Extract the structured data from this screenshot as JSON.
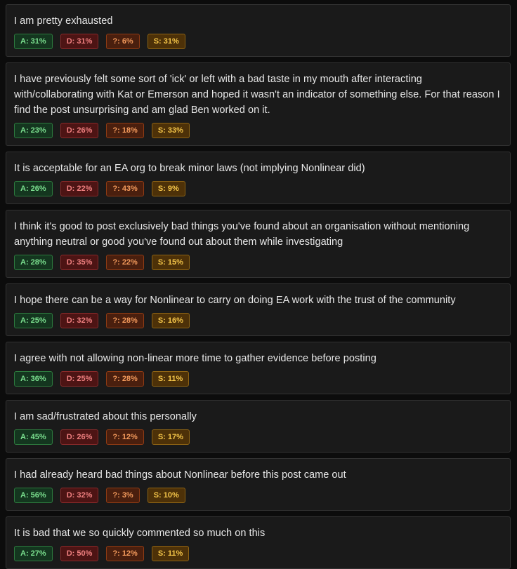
{
  "cards": [
    {
      "statement": "I am pretty exhausted",
      "a": "A: 31%",
      "d": "D: 31%",
      "q": "?: 6%",
      "s": "S: 31%"
    },
    {
      "statement": "I have previously felt some sort of 'ick' or left with a bad taste in my mouth after interacting with/collaborating with Kat or Emerson and hoped it wasn't an indicator of something else. For that reason I find the post unsurprising and am glad Ben worked on it.",
      "a": "A: 23%",
      "d": "D: 26%",
      "q": "?: 18%",
      "s": "S: 33%"
    },
    {
      "statement": "It is acceptable for an EA org to break minor laws (not implying Nonlinear did)",
      "a": "A: 26%",
      "d": "D: 22%",
      "q": "?: 43%",
      "s": "S: 9%"
    },
    {
      "statement": "I think it's good to post exclusively bad things you've found about an organisation without mentioning anything neutral or good you've found out about them while investigating",
      "a": "A: 28%",
      "d": "D: 35%",
      "q": "?: 22%",
      "s": "S: 15%"
    },
    {
      "statement": "I hope there can be a way for Nonlinear to carry on doing EA work with the trust of the community",
      "a": "A: 25%",
      "d": "D: 32%",
      "q": "?: 28%",
      "s": "S: 16%"
    },
    {
      "statement": "I agree with not allowing non-linear more time to gather evidence before posting",
      "a": "A: 36%",
      "d": "D: 25%",
      "q": "?: 28%",
      "s": "S: 11%"
    },
    {
      "statement": "I am sad/frustrated about this personally",
      "a": "A: 45%",
      "d": "D: 26%",
      "q": "?: 12%",
      "s": "S: 17%"
    },
    {
      "statement": "I had already heard bad things about Nonlinear before this post came out",
      "a": "A: 56%",
      "d": "D: 32%",
      "q": "?: 3%",
      "s": "S: 10%"
    },
    {
      "statement": "It is bad that we so quickly commented so much on this",
      "a": "A: 27%",
      "d": "D: 50%",
      "q": "?: 12%",
      "s": "S: 11%"
    }
  ],
  "colors": {
    "agree": "#7be08f",
    "disagree": "#f08080",
    "unsure": "#f39a5c",
    "skip": "#f5c64a"
  }
}
